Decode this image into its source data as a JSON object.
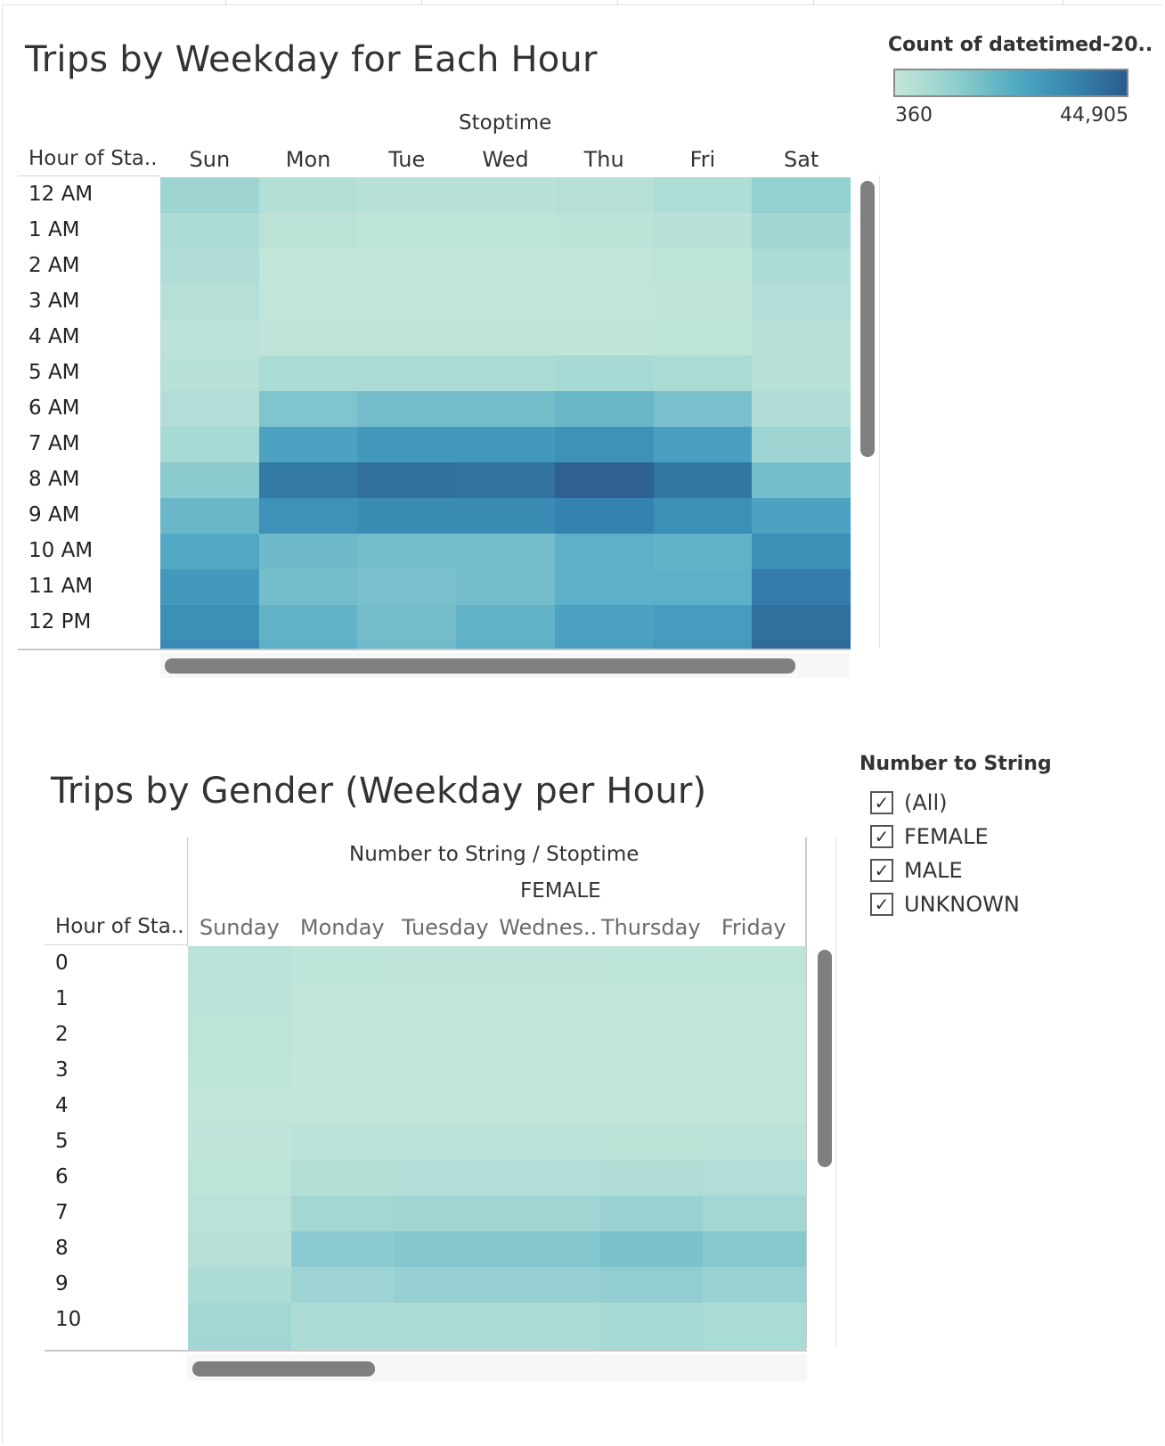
{
  "chart_data": [
    {
      "type": "heatmap",
      "title": "Trips by Weekday for Each Hour",
      "column_header": "Stoptime",
      "row_header": "Hour of Sta..",
      "columns": [
        "Sun",
        "Mon",
        "Tue",
        "Wed",
        "Thu",
        "Fri",
        "Sat"
      ],
      "rows": [
        "12 AM",
        "1 AM",
        "2 AM",
        "3 AM",
        "4 AM",
        "5 AM",
        "6 AM",
        "7 AM",
        "8 AM",
        "9 AM",
        "10 AM",
        "11 AM",
        "12 PM"
      ],
      "color_legend": {
        "title": "Count of datetimed-20..",
        "min": 360,
        "max": 44905,
        "min_label": "360",
        "max_label": "44,905"
      },
      "values": [
        [
          9000,
          4500,
          3500,
          3500,
          4000,
          6000,
          10500
        ],
        [
          7000,
          2500,
          2000,
          2000,
          2200,
          3500,
          8500
        ],
        [
          5500,
          1200,
          1100,
          1100,
          1200,
          2000,
          6500
        ],
        [
          4000,
          900,
          800,
          800,
          900,
          1500,
          5000
        ],
        [
          3000,
          1500,
          1400,
          1400,
          1500,
          2000,
          3500
        ],
        [
          3500,
          7000,
          7000,
          7000,
          7500,
          7000,
          3500
        ],
        [
          5000,
          14000,
          16000,
          16000,
          18000,
          15000,
          5500
        ],
        [
          7500,
          24000,
          27000,
          27000,
          29000,
          25000,
          9000
        ],
        [
          12000,
          37000,
          40000,
          39000,
          44905,
          38000,
          16000
        ],
        [
          18000,
          29000,
          31000,
          31000,
          34000,
          30000,
          24000
        ],
        [
          22000,
          17000,
          16000,
          16000,
          20000,
          19000,
          30000
        ],
        [
          27000,
          16000,
          15000,
          16000,
          20000,
          20000,
          36000
        ],
        [
          30000,
          19000,
          16000,
          19000,
          24000,
          26000,
          40000
        ]
      ]
    },
    {
      "type": "heatmap",
      "title": "Trips by Gender (Weekday per Hour)",
      "column_header": "Number to String  /  Stoptime",
      "column_group": "FEMALE",
      "row_header": "Hour of Sta..",
      "columns": [
        "Sunday",
        "Monday",
        "Tuesday",
        "Wednes..",
        "Thursday",
        "Friday"
      ],
      "rows": [
        "0",
        "1",
        "2",
        "3",
        "4",
        "5",
        "6",
        "7",
        "8",
        "9",
        "10"
      ],
      "values": [
        [
          2500,
          1200,
          1000,
          1000,
          1200,
          1500
        ],
        [
          2000,
          700,
          600,
          600,
          700,
          900
        ],
        [
          1500,
          400,
          350,
          350,
          400,
          600
        ],
        [
          1200,
          300,
          250,
          250,
          300,
          450
        ],
        [
          900,
          500,
          450,
          450,
          500,
          600
        ],
        [
          1000,
          2000,
          2000,
          2000,
          2200,
          2000
        ],
        [
          1500,
          4500,
          5000,
          5000,
          5500,
          4800
        ],
        [
          2500,
          8000,
          8500,
          8500,
          9500,
          8000
        ],
        [
          4000,
          12000,
          13000,
          13000,
          14500,
          12500
        ],
        [
          6000,
          9000,
          10000,
          10000,
          11000,
          9500
        ],
        [
          8000,
          6000,
          6000,
          6000,
          7000,
          6500
        ]
      ]
    }
  ],
  "filter": {
    "title": "Number to String",
    "items": [
      {
        "label": "(All)",
        "checked": true
      },
      {
        "label": "FEMALE",
        "checked": true
      },
      {
        "label": "MALE",
        "checked": true
      },
      {
        "label": "UNKNOWN",
        "checked": true
      }
    ],
    "check_glyph": "✓"
  },
  "colors": {
    "ramp_low": "#c4e6da",
    "ramp_mid": "#4aa6c1",
    "ramp_high": "#2a5c8c"
  }
}
